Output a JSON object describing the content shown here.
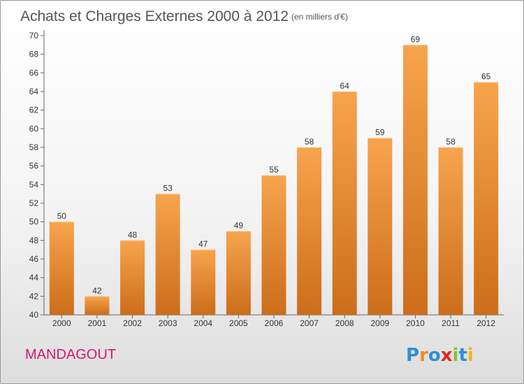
{
  "title": "Achats et Charges Externes 2000 à 2012",
  "unit": "(en milliers d'€)",
  "commune": "MANDAGOUT",
  "logo": "Proxiti",
  "colors": {
    "bar_top": "#f7a44e",
    "bar_bottom": "#cc6d1a",
    "commune": "#d4156f",
    "logo": [
      "#2f8fd8",
      "#f28c1e",
      "#2f8fd8",
      "#e0261c",
      "#8dbf2a",
      "#2f8fd8",
      "#f2b31e"
    ]
  },
  "chart_data": {
    "type": "bar",
    "categories": [
      "2000",
      "2001",
      "2002",
      "2003",
      "2004",
      "2005",
      "2006",
      "2007",
      "2008",
      "2009",
      "2010",
      "2011",
      "2012"
    ],
    "values": [
      50,
      42,
      48,
      53,
      47,
      49,
      55,
      58,
      64,
      59,
      69,
      58,
      65
    ],
    "ylim": [
      40,
      70
    ],
    "yticks": [
      40,
      42,
      44,
      46,
      48,
      50,
      52,
      54,
      56,
      58,
      60,
      62,
      64,
      66,
      68,
      70
    ],
    "grid": false,
    "data_labels": true
  }
}
